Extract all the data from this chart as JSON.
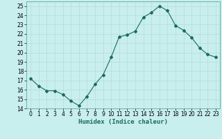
{
  "x": [
    0,
    1,
    2,
    3,
    4,
    5,
    6,
    7,
    8,
    9,
    10,
    11,
    12,
    13,
    14,
    15,
    16,
    17,
    18,
    19,
    20,
    21,
    22,
    23
  ],
  "y": [
    17.2,
    16.4,
    15.9,
    15.9,
    15.5,
    14.8,
    14.3,
    15.3,
    16.6,
    17.6,
    19.5,
    21.7,
    21.9,
    22.3,
    23.8,
    24.3,
    25.0,
    24.5,
    22.9,
    22.4,
    21.6,
    20.5,
    19.8,
    19.5
  ],
  "line_color": "#1a6b5a",
  "marker": "D",
  "marker_size": 2,
  "bg_color": "#c8eeee",
  "grid_color": "#b8dada",
  "xlabel": "Humidex (Indice chaleur)",
  "xlim": [
    -0.5,
    23.5
  ],
  "ylim": [
    14,
    25.5
  ],
  "yticks": [
    14,
    15,
    16,
    17,
    18,
    19,
    20,
    21,
    22,
    23,
    24,
    25
  ],
  "xticks": [
    0,
    1,
    2,
    3,
    4,
    5,
    6,
    7,
    8,
    9,
    10,
    11,
    12,
    13,
    14,
    15,
    16,
    17,
    18,
    19,
    20,
    21,
    22,
    23
  ],
  "label_fontsize": 6.5,
  "tick_fontsize": 5.5
}
